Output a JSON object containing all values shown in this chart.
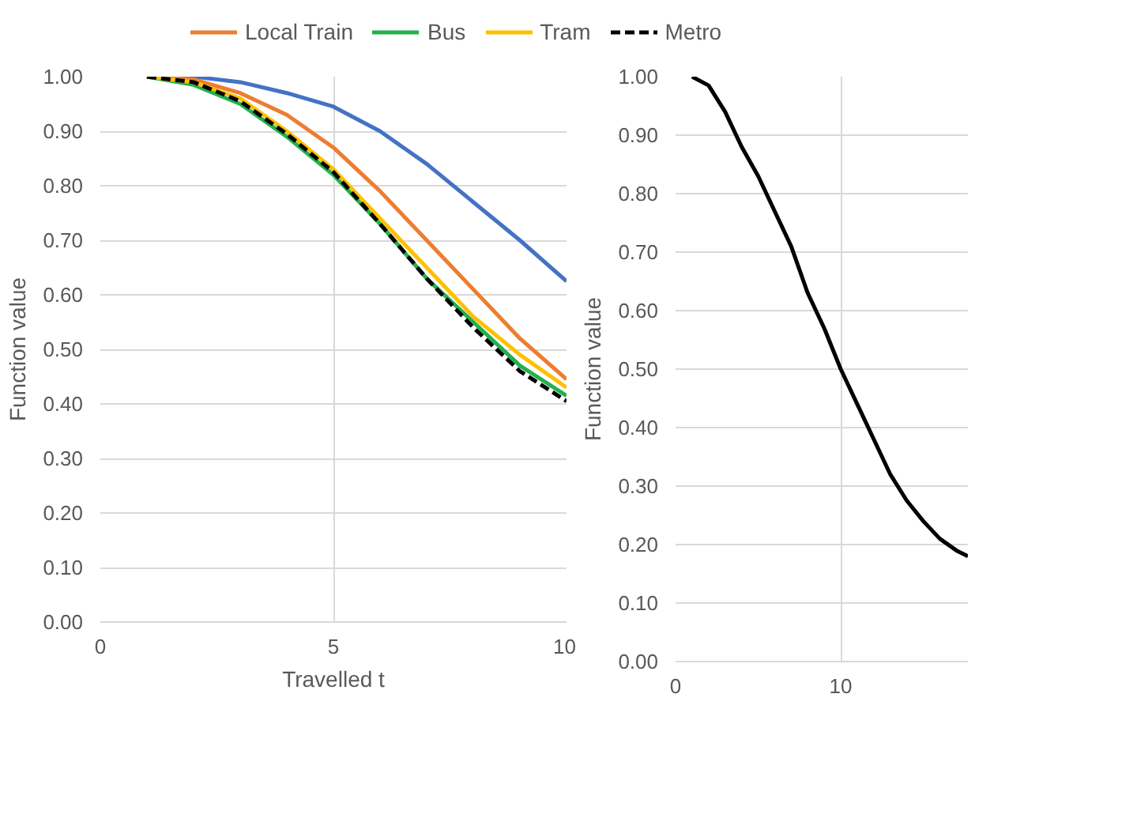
{
  "chart_data": [
    {
      "type": "line",
      "xlabel": "Travelled t",
      "ylabel": "Function value",
      "x": [
        1,
        2,
        3,
        4,
        5,
        6,
        7,
        8,
        9,
        10
      ],
      "xlim": [
        0,
        10
      ],
      "xticks": [
        0,
        5,
        10
      ],
      "ylim": [
        0,
        1
      ],
      "yticks": [
        {
          "value": 0,
          "label": "0.00"
        },
        {
          "value": 0.1,
          "label": "0.10"
        },
        {
          "value": 0.2,
          "label": "0.20"
        },
        {
          "value": 0.3,
          "label": "0.30"
        },
        {
          "value": 0.4,
          "label": "0.40"
        },
        {
          "value": 0.5,
          "label": "0.50"
        },
        {
          "value": 0.6,
          "label": "0.60"
        },
        {
          "value": 0.7,
          "label": "0.70"
        },
        {
          "value": 0.8,
          "label": "0.80"
        },
        {
          "value": 0.9,
          "label": "0.90"
        },
        {
          "value": 1,
          "label": "1.00"
        }
      ],
      "grid": true,
      "legend": "top",
      "line_style": "solid",
      "series": [
        {
          "color": "#4472c4",
          "values": [
            1.0,
            1.0,
            0.99,
            0.97,
            0.945,
            0.9,
            0.84,
            0.77,
            0.7,
            0.625
          ]
        },
        {
          "name": "Local Train",
          "color": "#ed7d31",
          "values": [
            1.0,
            0.995,
            0.97,
            0.93,
            0.87,
            0.79,
            0.7,
            0.61,
            0.52,
            0.445
          ]
        },
        {
          "name": "Bus",
          "color": "#22b14c",
          "values": [
            1.0,
            0.985,
            0.95,
            0.89,
            0.82,
            0.73,
            0.63,
            0.55,
            0.47,
            0.415
          ]
        },
        {
          "name": "Tram",
          "color": "#ffc000",
          "values": [
            1.0,
            0.99,
            0.96,
            0.9,
            0.83,
            0.74,
            0.65,
            0.56,
            0.49,
            0.43
          ]
        },
        {
          "name": "Metro",
          "color": "#000000",
          "line_style": "dashed",
          "values": [
            1.0,
            0.99,
            0.955,
            0.895,
            0.825,
            0.73,
            0.63,
            0.54,
            0.46,
            0.405
          ]
        }
      ]
    },
    {
      "type": "line",
      "ylabel": "Function value",
      "x": [
        1,
        2,
        3,
        4,
        5,
        6,
        7,
        8,
        9,
        10,
        11,
        12,
        13,
        14,
        15,
        16,
        17,
        17.7
      ],
      "xlim": [
        0,
        17.7
      ],
      "xticks": [
        0,
        10
      ],
      "ylim": [
        0,
        1
      ],
      "yticks": [
        {
          "value": 0,
          "label": "0.00"
        },
        {
          "value": 0.1,
          "label": "0.10"
        },
        {
          "value": 0.2,
          "label": "0.20"
        },
        {
          "value": 0.3,
          "label": "0.30"
        },
        {
          "value": 0.4,
          "label": "0.40"
        },
        {
          "value": 0.5,
          "label": "0.50"
        },
        {
          "value": 0.6,
          "label": "0.60"
        },
        {
          "value": 0.7,
          "label": "0.70"
        },
        {
          "value": 0.8,
          "label": "0.80"
        },
        {
          "value": 0.9,
          "label": "0.90"
        },
        {
          "value": 1,
          "label": "1.00"
        }
      ],
      "grid": true,
      "line_style": "solid",
      "series": [
        {
          "color": "#000000",
          "values": [
            1.0,
            0.985,
            0.94,
            0.88,
            0.83,
            0.77,
            0.71,
            0.63,
            0.57,
            0.5,
            0.44,
            0.38,
            0.32,
            0.275,
            0.24,
            0.21,
            0.19,
            0.18
          ]
        }
      ]
    }
  ]
}
